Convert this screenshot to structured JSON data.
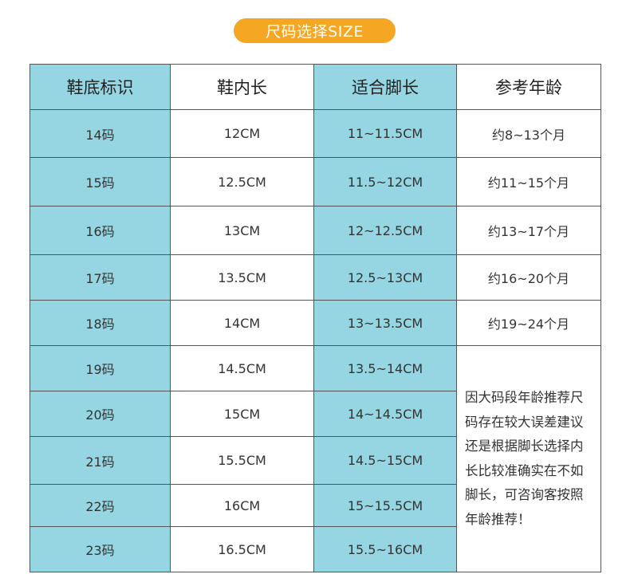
{
  "title": "尺码选择SIZE",
  "colors": {
    "accent": "#f5a623",
    "cyan": "#95d6e2",
    "white": "#ffffff"
  },
  "headers": [
    "鞋底标识",
    "鞋内长",
    "适合脚长",
    "参考年龄"
  ],
  "rows": [
    {
      "size": "14码",
      "inner": "12CM",
      "foot": "11~11.5CM",
      "age": "约8~13个月"
    },
    {
      "size": "15码",
      "inner": "12.5CM",
      "foot": "11.5~12CM",
      "age": "约11~15个月"
    },
    {
      "size": "16码",
      "inner": "13CM",
      "foot": "12~12.5CM",
      "age": "约13~17个月"
    },
    {
      "size": "17码",
      "inner": "13.5CM",
      "foot": "12.5~13CM",
      "age": "约16~20个月"
    },
    {
      "size": "18码",
      "inner": "14CM",
      "foot": "13~13.5CM",
      "age": "约19~24个月"
    },
    {
      "size": "19码",
      "inner": "14.5CM",
      "foot": "13.5~14CM"
    },
    {
      "size": "20码",
      "inner": "15CM",
      "foot": "14~14.5CM"
    },
    {
      "size": "21码",
      "inner": "15.5CM",
      "foot": "14.5~15CM"
    },
    {
      "size": "22码",
      "inner": "16CM",
      "foot": "15~15.5CM"
    },
    {
      "size": "23码",
      "inner": "16.5CM",
      "foot": "15.5~16CM"
    }
  ],
  "note": "因大码段年龄推荐尺码存在较大误差建议还是根据脚长选择内长比较准确实在不如脚长，可咨询客按照年龄推荐！"
}
